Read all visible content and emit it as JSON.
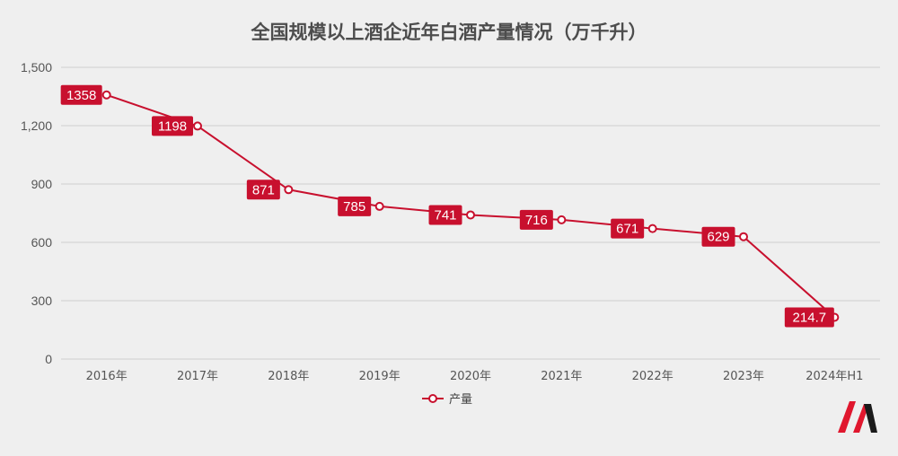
{
  "colors": {
    "background": "#efefef",
    "series": "#c8102e",
    "grid": "#cfcfcf",
    "logo_red": "#e0172e",
    "logo_dark": "#1a1a1a"
  },
  "logo": {
    "icon": "m-brand-logo-icon"
  },
  "chart_data": {
    "type": "line",
    "title": "全国规模以上酒企近年白酒产量情况（万千升）",
    "x": [
      "2016年",
      "2017年",
      "2018年",
      "2019年",
      "2020年",
      "2021年",
      "2022年",
      "2023年",
      "2024年H1"
    ],
    "series": [
      {
        "name": "产量",
        "values": [
          1358,
          1198,
          871,
          785,
          741,
          716,
          671,
          629,
          214.7
        ],
        "labels": [
          "1358",
          "1198",
          "871",
          "785",
          "741",
          "716",
          "671",
          "629",
          "214.7"
        ]
      }
    ],
    "ylim": [
      0,
      1500
    ],
    "yticks": [
      0,
      300,
      600,
      900,
      1200,
      1500
    ],
    "ytick_labels": [
      "0",
      "300",
      "600",
      "900",
      "1,200",
      "1,500"
    ],
    "xlabel": "",
    "ylabel": "",
    "grid": true,
    "legend": "bottom-center"
  }
}
